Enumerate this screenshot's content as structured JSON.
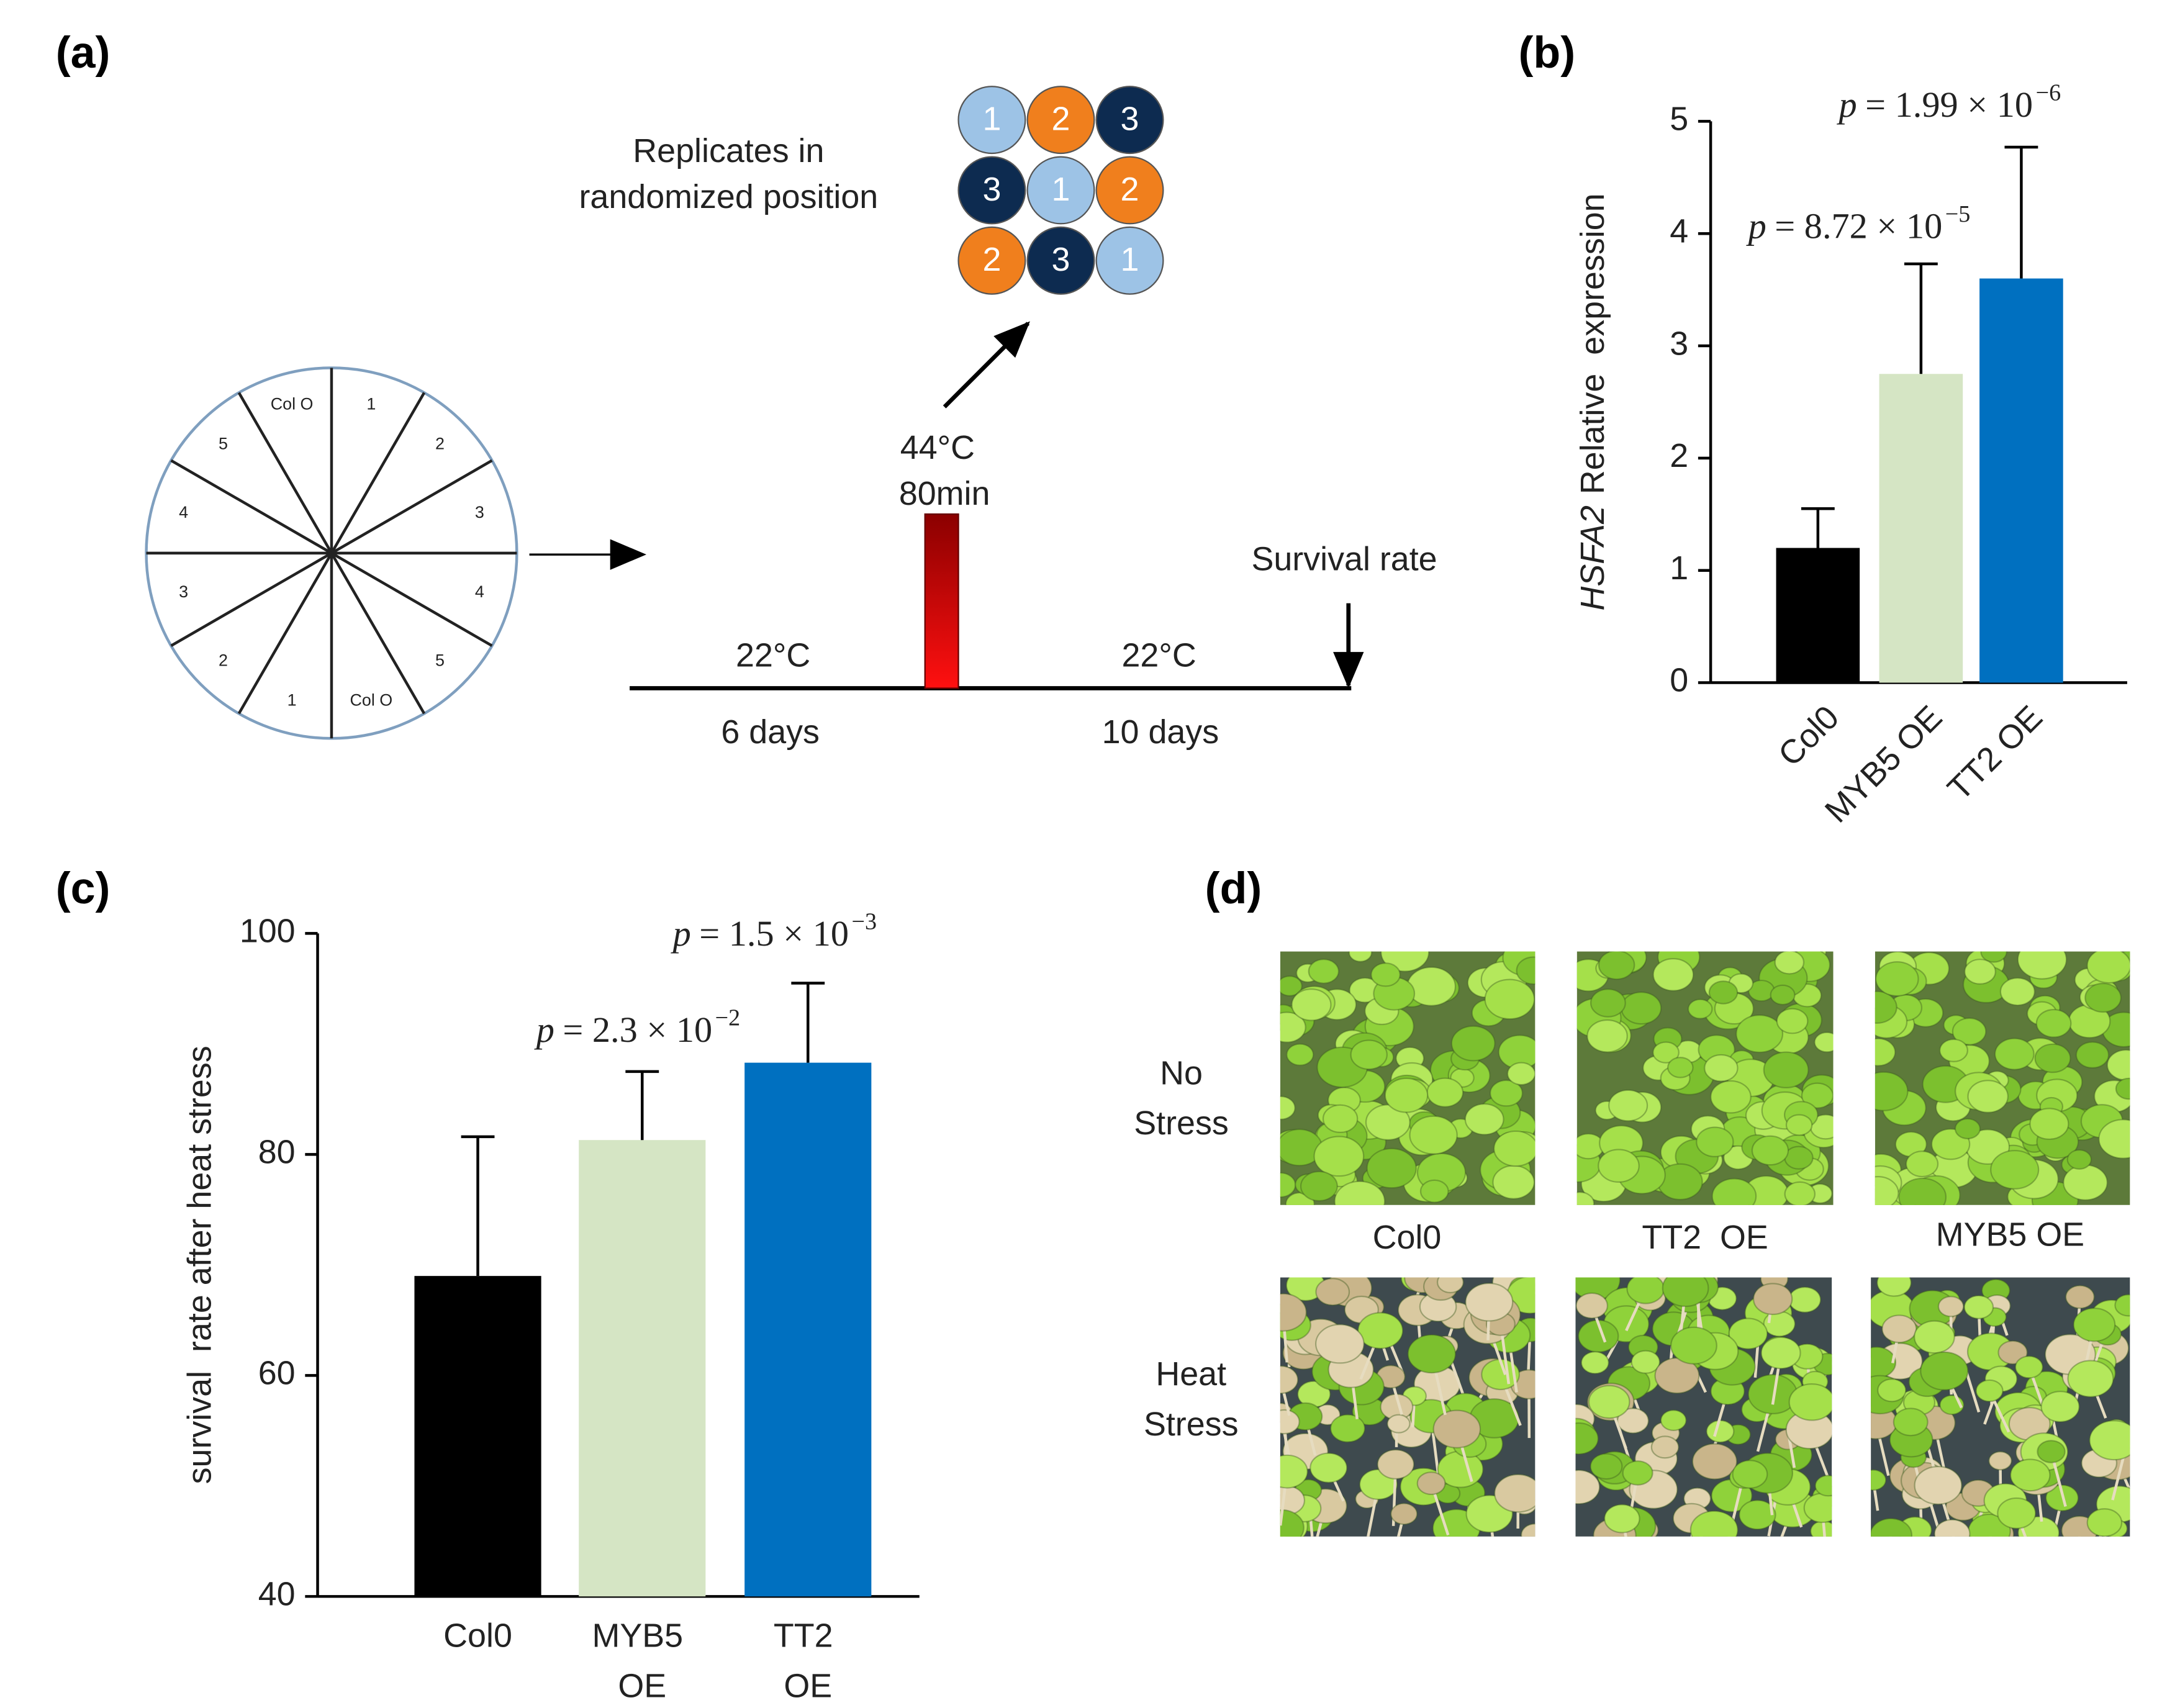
{
  "panels": {
    "a": {
      "panel_label": "(a)",
      "wheel_labels": [
        "Col O",
        "1",
        "2",
        "3",
        "4",
        "5",
        "Col O",
        "1",
        "2",
        "3",
        "4",
        "5"
      ],
      "replicates_title": [
        "Replicates in",
        "randomized position"
      ],
      "replicates": [
        [
          {
            "label": "1",
            "color": "#9dc3e6"
          },
          {
            "label": "2",
            "color": "#f07f1d"
          },
          {
            "label": "3",
            "color": "#0d2b50"
          }
        ],
        [
          {
            "label": "3",
            "color": "#0d2b50"
          },
          {
            "label": "1",
            "color": "#9dc3e6"
          },
          {
            "label": "2",
            "color": "#f07f1d"
          }
        ],
        [
          {
            "label": "2",
            "color": "#f07f1d"
          },
          {
            "label": "3",
            "color": "#0d2b50"
          },
          {
            "label": "1",
            "color": "#9dc3e6"
          }
        ]
      ],
      "stress_temp": "44°C",
      "stress_time": "80min",
      "temp_before": "22°C",
      "days_before": "6 days",
      "temp_after": "22°C",
      "days_after": "10 days",
      "end_label": "Survival rate"
    },
    "d": {
      "panel_label": "(d)",
      "row_labels": [
        [
          "No",
          "Stress"
        ],
        [
          "Heat",
          "Stress"
        ]
      ],
      "column_labels": [
        "Col0",
        "TT2  OE",
        "MYB5 OE"
      ]
    }
  },
  "chart_data": [
    {
      "type": "bar",
      "panel_label": "(b)",
      "y_label": {
        "gene": "HSFA2",
        "text": "Relative  expression"
      },
      "categories": [
        "Col0",
        "MYB5 OE",
        "TT2 OE"
      ],
      "values": [
        1.2,
        2.75,
        3.6
      ],
      "errors": [
        0.35,
        0.98,
        1.17
      ],
      "colors": [
        "#000000",
        "#d5e5c4",
        "#0070c0"
      ],
      "ylim": [
        0,
        5
      ],
      "yticks": [
        0,
        1,
        2,
        3,
        4,
        5
      ],
      "annotations": [
        {
          "symbol": "p",
          "text": "= 8.72 × 10",
          "exponent": "−5"
        },
        {
          "symbol": "p",
          "text": "= 1.99 × 10",
          "exponent": "−6"
        }
      ]
    },
    {
      "type": "bar",
      "panel_label": "(c)",
      "y_label": "survival  rate after heat stress",
      "categories": [
        "Col0",
        "MYB5 OE",
        "TT2 OE"
      ],
      "values": [
        69,
        81.3,
        88.3
      ],
      "errors": [
        12.6,
        6.2,
        7.2
      ],
      "colors": [
        "#000000",
        "#d5e5c4",
        "#0070c0"
      ],
      "ylim": [
        40,
        100
      ],
      "yticks": [
        40,
        60,
        80,
        100
      ],
      "annotations": [
        {
          "symbol": "p",
          "text": "= 2.3 × 10",
          "exponent": "−2"
        },
        {
          "symbol": "p",
          "text": "= 1.5 × 10",
          "exponent": "−3"
        }
      ]
    }
  ]
}
